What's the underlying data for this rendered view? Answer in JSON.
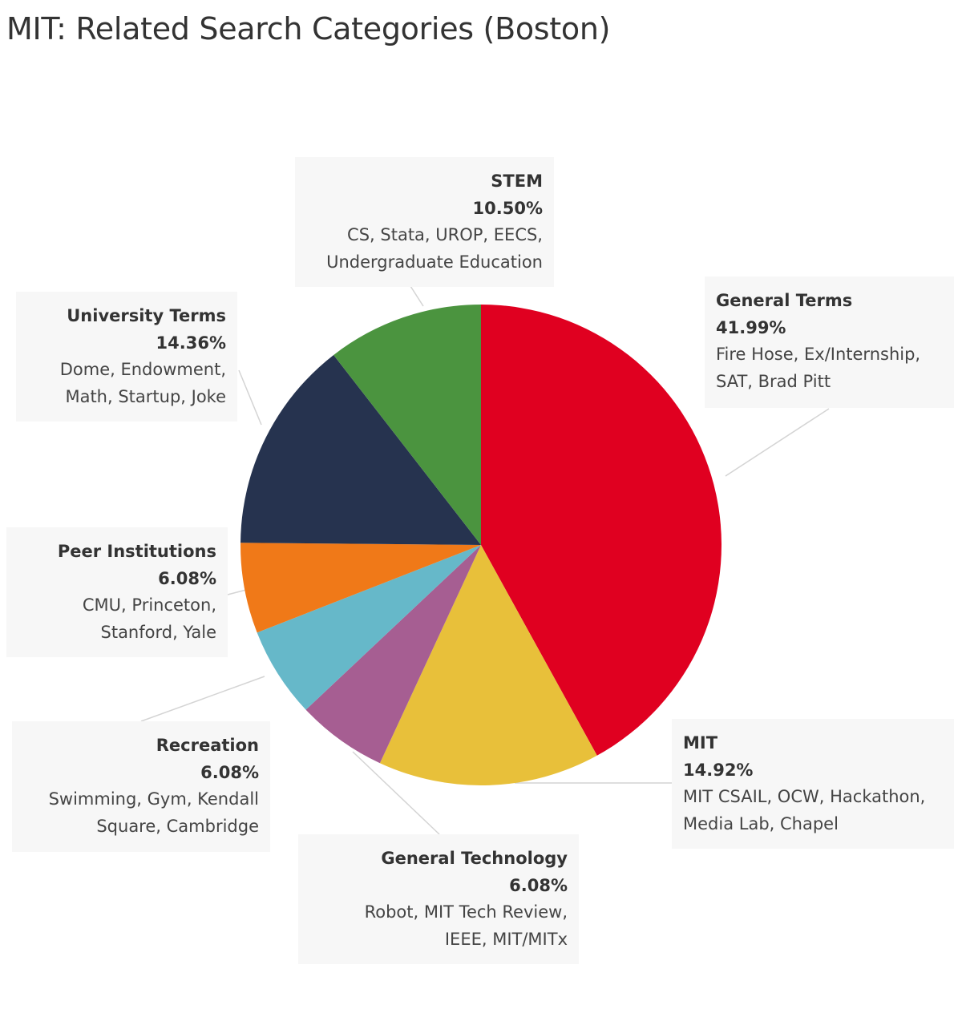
{
  "title": "MIT: Related Search Categories (Boston)",
  "chart_data": {
    "type": "pie",
    "start_angle": "12 o'clock",
    "direction": "clockwise",
    "slices": [
      {
        "name": "General Terms",
        "value": 41.99,
        "label": "41.99%",
        "color": "#e00020",
        "keywords": [
          "Fire Hose, Ex/Internship,",
          "SAT, Brad Pitt"
        ]
      },
      {
        "name": "MIT",
        "value": 14.92,
        "label": "14.92%",
        "color": "#e8c03a",
        "keywords": [
          "MIT CSAIL, OCW, Hackathon,",
          "Media Lab, Chapel"
        ]
      },
      {
        "name": "General Technology",
        "value": 6.08,
        "label": "6.08%",
        "color": "#a65e92",
        "keywords": [
          "Robot, MIT Tech Review,",
          "IEEE, MIT/MITx"
        ]
      },
      {
        "name": "Recreation",
        "value": 6.08,
        "label": "6.08%",
        "color": "#66b8c9",
        "keywords": [
          "Swimming, Gym, Kendall",
          "Square, Cambridge"
        ]
      },
      {
        "name": "Peer Institutions",
        "value": 6.08,
        "label": "6.08%",
        "color": "#f07918",
        "keywords": [
          "CMU, Princeton,",
          "Stanford, Yale"
        ]
      },
      {
        "name": "University Terms",
        "value": 14.36,
        "label": "14.36%",
        "color": "#26334f",
        "keywords": [
          "Dome, Endowment,",
          "Math, Startup, Joke"
        ]
      },
      {
        "name": "STEM",
        "value": 10.5,
        "label": "10.50%",
        "color": "#4b943f",
        "keywords": [
          "CS, Stata, UROP, EECS,",
          "Undergraduate Education"
        ]
      }
    ]
  }
}
